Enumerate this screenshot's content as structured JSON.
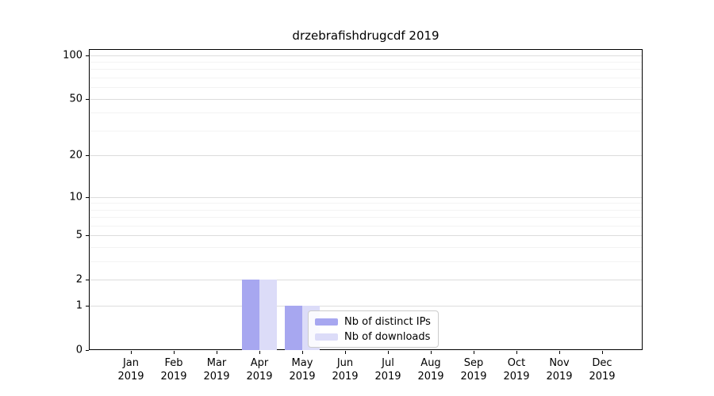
{
  "chart_data": {
    "type": "bar",
    "title": "drzebrafishdrugcdf 2019",
    "categories": [
      "Jan 2019",
      "Feb 2019",
      "Mar 2019",
      "Apr 2019",
      "May 2019",
      "Jun 2019",
      "Jul 2019",
      "Aug 2019",
      "Sep 2019",
      "Oct 2019",
      "Nov 2019",
      "Dec 2019"
    ],
    "x_tick_months": [
      "Jan",
      "Feb",
      "Mar",
      "Apr",
      "May",
      "Jun",
      "Jul",
      "Aug",
      "Sep",
      "Oct",
      "Nov",
      "Dec"
    ],
    "x_tick_year": "2019",
    "series": [
      {
        "name": "Nb of distinct IPs",
        "color": "#a7a7f0",
        "values": [
          0,
          0,
          0,
          2,
          1,
          0,
          0,
          0,
          0,
          0,
          0,
          0
        ]
      },
      {
        "name": "Nb of downloads",
        "color": "#dcdcf8",
        "values": [
          0,
          0,
          0,
          2,
          1,
          0,
          0,
          0,
          0,
          0,
          0,
          0
        ]
      }
    ],
    "yscale": "log1p",
    "ylim": [
      0,
      110
    ],
    "yticks": [
      0,
      1,
      2,
      5,
      10,
      20,
      50,
      100
    ],
    "minor_yticks": [
      3,
      4,
      6,
      7,
      8,
      9,
      30,
      40,
      60,
      70,
      80,
      90
    ],
    "grid": true,
    "legend_position": "lower center, inside plot"
  },
  "colors": {
    "grid_major": "#dcdcdc",
    "grid_minor": "#f3f3f3",
    "axis": "#000000",
    "legend_border": "#cccccc",
    "background": "#ffffff"
  }
}
